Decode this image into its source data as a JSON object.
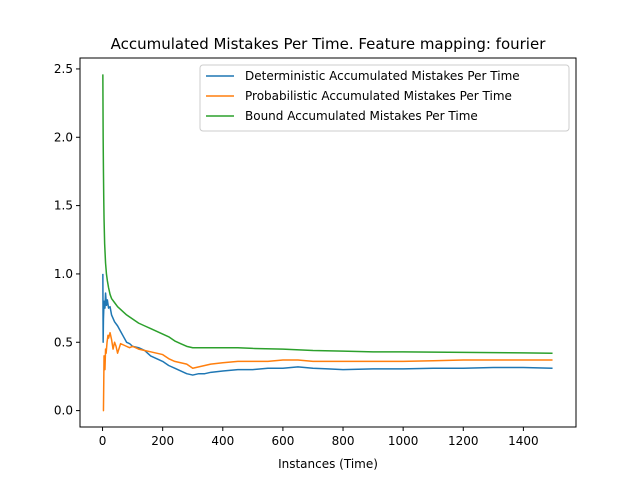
{
  "chart_data": {
    "type": "line",
    "title": "Accumulated Mistakes Per Time. Feature mapping: fourier",
    "xlabel": "Instances (Time)",
    "ylabel": "",
    "xlim": [
      -75,
      1575
    ],
    "ylim": [
      -0.12,
      2.58
    ],
    "xticks": [
      0,
      200,
      400,
      600,
      800,
      1000,
      1200,
      1400
    ],
    "yticks": [
      0.0,
      0.5,
      1.0,
      1.5,
      2.0,
      2.5
    ],
    "xtick_labels": [
      "0",
      "200",
      "400",
      "600",
      "800",
      "1000",
      "1200",
      "1400"
    ],
    "ytick_labels": [
      "0.0",
      "0.5",
      "1.0",
      "1.5",
      "2.0",
      "2.5"
    ],
    "grid": false,
    "legend_position": "top-right",
    "series": [
      {
        "name": "Deterministic Accumulated Mistakes Per Time",
        "color": "#1f77b4",
        "x": [
          1,
          2,
          3,
          5,
          8,
          10,
          13,
          16,
          20,
          25,
          30,
          40,
          50,
          60,
          70,
          80,
          90,
          100,
          120,
          140,
          160,
          180,
          200,
          220,
          240,
          260,
          280,
          300,
          320,
          340,
          360,
          400,
          450,
          500,
          550,
          600,
          650,
          700,
          750,
          800,
          900,
          1000,
          1100,
          1200,
          1300,
          1400,
          1497
        ],
        "y": [
          1.0,
          0.5,
          0.67,
          0.8,
          0.75,
          0.86,
          0.77,
          0.81,
          0.75,
          0.76,
          0.7,
          0.65,
          0.62,
          0.58,
          0.54,
          0.5,
          0.49,
          0.47,
          0.46,
          0.44,
          0.4,
          0.38,
          0.36,
          0.33,
          0.31,
          0.29,
          0.27,
          0.26,
          0.27,
          0.27,
          0.28,
          0.29,
          0.3,
          0.3,
          0.31,
          0.31,
          0.32,
          0.31,
          0.305,
          0.3,
          0.305,
          0.305,
          0.31,
          0.31,
          0.315,
          0.315,
          0.31
        ]
      },
      {
        "name": "Probabilistic Accumulated Mistakes Per Time",
        "color": "#ff7f0e",
        "x": [
          1,
          3,
          5,
          8,
          10,
          12,
          15,
          18,
          20,
          25,
          30,
          35,
          40,
          45,
          50,
          60,
          70,
          80,
          90,
          100,
          120,
          140,
          160,
          180,
          200,
          220,
          240,
          260,
          280,
          300,
          320,
          340,
          360,
          400,
          450,
          500,
          550,
          600,
          650,
          700,
          800,
          900,
          1000,
          1100,
          1200,
          1300,
          1400,
          1497
        ],
        "y": [
          0.0,
          0.0,
          0.4,
          0.3,
          0.45,
          0.42,
          0.5,
          0.55,
          0.53,
          0.57,
          0.52,
          0.45,
          0.5,
          0.47,
          0.42,
          0.49,
          0.48,
          0.47,
          0.46,
          0.47,
          0.45,
          0.44,
          0.43,
          0.42,
          0.41,
          0.38,
          0.36,
          0.35,
          0.34,
          0.31,
          0.32,
          0.33,
          0.34,
          0.35,
          0.36,
          0.36,
          0.36,
          0.37,
          0.37,
          0.36,
          0.36,
          0.36,
          0.36,
          0.365,
          0.37,
          0.37,
          0.37,
          0.37
        ]
      },
      {
        "name": "Bound Accumulated Mistakes Per Time",
        "color": "#2ca02c",
        "x": [
          1,
          2,
          3,
          4,
          5,
          7,
          10,
          13,
          16,
          20,
          25,
          30,
          40,
          50,
          60,
          80,
          100,
          120,
          140,
          160,
          180,
          200,
          220,
          240,
          260,
          280,
          300,
          350,
          400,
          450,
          500,
          600,
          700,
          800,
          900,
          1000,
          1100,
          1200,
          1300,
          1400,
          1497
        ],
        "y": [
          2.46,
          2.0,
          1.75,
          1.55,
          1.4,
          1.22,
          1.08,
          1.0,
          0.95,
          0.9,
          0.85,
          0.82,
          0.79,
          0.76,
          0.74,
          0.7,
          0.67,
          0.64,
          0.62,
          0.6,
          0.58,
          0.56,
          0.54,
          0.51,
          0.49,
          0.47,
          0.46,
          0.46,
          0.46,
          0.46,
          0.455,
          0.45,
          0.44,
          0.435,
          0.43,
          0.43,
          0.428,
          0.426,
          0.424,
          0.422,
          0.42
        ]
      }
    ]
  }
}
